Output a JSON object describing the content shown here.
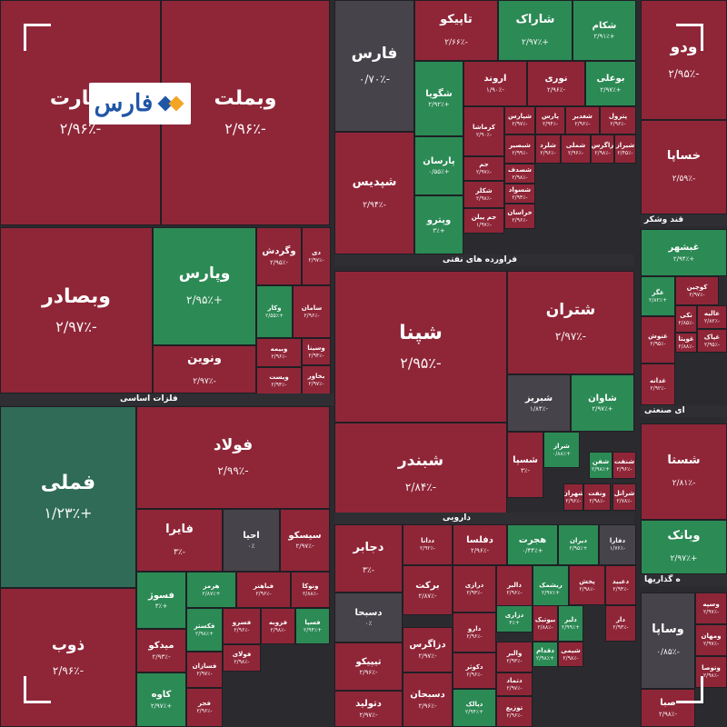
{
  "colors": {
    "loss": "#8f2638",
    "gain": "#2c8a55",
    "gain_dark": "#2f6b57",
    "neutral": "#47434a",
    "logo_blue": "#1f56a6",
    "logo_orange": "#f2a425"
  },
  "logo": {
    "text": "فارس"
  },
  "chart_data": {
    "type": "treemap",
    "sectors": [
      "فلزات اساسی",
      "فراورده های نفتی",
      "دارویی",
      "قند وشکر",
      "ای صنعتی",
      "ه گذاریها"
    ],
    "tiles": [
      {
        "symbol": "تجارت",
        "change": "-۲/۹۶٪"
      },
      {
        "symbol": "وبملت",
        "change": "-۲/۹۶٪"
      },
      {
        "symbol": "وبصادر",
        "change": "-۲/۹۷٪"
      },
      {
        "symbol": "وپارس",
        "change": "+۲/۹۵٪"
      },
      {
        "symbol": "وگردش",
        "change": "-۲/۹۵٪"
      },
      {
        "symbol": "دی",
        "change": "-۲/۹۷٪"
      },
      {
        "symbol": "وکار",
        "change": "+۲/۵۵٪"
      },
      {
        "symbol": "سامان",
        "change": "-۲/۹۶٪"
      },
      {
        "symbol": "وبیمه",
        "change": "-۲/۹۶٪"
      },
      {
        "symbol": "ونوین",
        "change": "-۲/۹۷٪"
      },
      {
        "symbol": "وسینا",
        "change": "-۲/۹۴٪"
      },
      {
        "symbol": "ویست",
        "change": "-۲/۹۴٪"
      },
      {
        "symbol": "بخاور",
        "change": "-۲/۹۷٪"
      },
      {
        "symbol": "فملی",
        "change": "+۱/۲۳٪"
      },
      {
        "symbol": "فولاد",
        "change": "-۲/۹۹٪"
      },
      {
        "symbol": "ذوب",
        "change": "-۲/۹۶٪"
      },
      {
        "symbol": "فایرا",
        "change": "-۳٪"
      },
      {
        "symbol": "احیا",
        "change": "۰٪"
      },
      {
        "symbol": "سیسکو",
        "change": "-۲/۹۷٪"
      },
      {
        "symbol": "فسوژ",
        "change": "+۳٪"
      },
      {
        "symbol": "هرمز",
        "change": "+۲/۸۷٪"
      },
      {
        "symbol": "فباهنر",
        "change": "-۲/۹۶٪"
      },
      {
        "symbol": "ونوکا",
        "change": "-۲/۸۸٪"
      },
      {
        "symbol": "میدکو",
        "change": "-۲/۹۳٪"
      },
      {
        "symbol": "فکستر",
        "change": "+۲/۹۸٪"
      },
      {
        "symbol": "فسرو",
        "change": "-۲/۹۶٪"
      },
      {
        "symbol": "فزوبه",
        "change": "-۲/۹۸٪"
      },
      {
        "symbol": "فسپا",
        "change": "+۲/۹۴٪"
      },
      {
        "symbol": "فولای",
        "change": "-۲/۹۸٪"
      },
      {
        "symbol": "فسازان",
        "change": "-۲/۹۷٪"
      },
      {
        "symbol": "کاوه",
        "change": "+۲/۹۷٪"
      },
      {
        "symbol": "فجر",
        "change": "-۲/۹۶٪"
      },
      {
        "symbol": "فارس",
        "change": "-۰/۷۰٪"
      },
      {
        "symbol": "شپدیس",
        "change": "-۲/۹۴٪"
      },
      {
        "symbol": "تاپیکو",
        "change": "-۲/۶۶٪"
      },
      {
        "symbol": "شاراک",
        "change": "+۲/۹۷٪"
      },
      {
        "symbol": "شکام",
        "change": "+۲/۹۱٪"
      },
      {
        "symbol": "شگویا",
        "change": "+۲/۹۲٪"
      },
      {
        "symbol": "اروند",
        "change": "-۱/۹۰٪"
      },
      {
        "symbol": "نوری",
        "change": "-۲/۹۶٪"
      },
      {
        "symbol": "بوعلی",
        "change": "+۲/۹۷٪"
      },
      {
        "symbol": "کرماشا",
        "change": "-۲/۹۰٪"
      },
      {
        "symbol": "شپارس",
        "change": "-۲/۹۷٪"
      },
      {
        "symbol": "پارس",
        "change": "-۲/۹۴٪"
      },
      {
        "symbol": "شغدیر",
        "change": "-۲/۹۶٪"
      },
      {
        "symbol": "پترول",
        "change": "-۲/۹۶٪"
      },
      {
        "symbol": "پارسان",
        "change": "+۰/۵۵٪"
      },
      {
        "symbol": "شبصیر",
        "change": "-۲/۹۹٪"
      },
      {
        "symbol": "شلرد",
        "change": "-۲/۹۶٪"
      },
      {
        "symbol": "شملی",
        "change": "-۲/۹۶٪"
      },
      {
        "symbol": "زاگرس",
        "change": "-۲/۹۸٪"
      },
      {
        "symbol": "شیراز",
        "change": "-۲/۴۵٪"
      },
      {
        "symbol": "جم",
        "change": "-۲/۹۷٪"
      },
      {
        "symbol": "شصدف",
        "change": "-۲/۹۸٪"
      },
      {
        "symbol": "شسواد",
        "change": "-۲/۹۴٪"
      },
      {
        "symbol": "وپترو",
        "change": "+۳٪"
      },
      {
        "symbol": "شکلر",
        "change": "-۲/۹۸٪"
      },
      {
        "symbol": "جم پیلن",
        "change": "-۱/۹۷٪"
      },
      {
        "symbol": "خراسان",
        "change": "-۲/۹۶٪"
      },
      {
        "symbol": "شپنا",
        "change": "-۲/۹۵٪"
      },
      {
        "symbol": "شتران",
        "change": "-۲/۹۷٪"
      },
      {
        "symbol": "شبریز",
        "change": "-۱/۸۴٪"
      },
      {
        "symbol": "شاوان",
        "change": "+۲/۹۷٪"
      },
      {
        "symbol": "شبندر",
        "change": "-۲/۸۴٪"
      },
      {
        "symbol": "شسپا",
        "change": "-۳٪"
      },
      {
        "symbol": "شراز",
        "change": "+۰/۸۸٪"
      },
      {
        "symbol": "شفن",
        "change": "+۲/۹۸٪"
      },
      {
        "symbol": "شهران",
        "change": "-۲/۹۶٪"
      },
      {
        "symbol": "ونفت",
        "change": "-۲/۹۸٪"
      },
      {
        "symbol": "شنفت",
        "change": "-۲/۹۶٪"
      },
      {
        "symbol": "شرانل",
        "change": "-۲/۷۸٪"
      },
      {
        "symbol": "ودو",
        "change": "-۲/۹۵٪"
      },
      {
        "symbol": "خساپا",
        "change": "-۲/۵۹٪"
      },
      {
        "symbol": "غبشهر",
        "change": "+۲/۹۴٪"
      },
      {
        "symbol": "غگز",
        "change": "+۲/۸۲٪"
      },
      {
        "symbol": "کوچین",
        "change": "-۲/۹۷٪"
      },
      {
        "symbol": "نکی",
        "change": "-۲/۸۵٪"
      },
      {
        "symbol": "عالیه",
        "change": "-۲/۸۲٪"
      },
      {
        "symbol": "غنوش",
        "change": "-۲/۹۵٪"
      },
      {
        "symbol": "غویتا",
        "change": "-۲/۸۸٪"
      },
      {
        "symbol": "غپاک",
        "change": "-۲/۹۵٪"
      },
      {
        "symbol": "غدانه",
        "change": "-۲/۹۲٪"
      },
      {
        "symbol": "شستا",
        "change": "-۲/۸۱٪"
      },
      {
        "symbol": "وبانک",
        "change": "+۲/۹۷٪"
      },
      {
        "symbol": "وسپه",
        "change": "-۲/۹۷٪"
      },
      {
        "symbol": "ومهان",
        "change": "-۲/۹۷٪"
      },
      {
        "symbol": "وتوصا",
        "change": "-۲/۹۸٪"
      },
      {
        "symbol": "وساپا",
        "change": "-۰/۸۵٪"
      },
      {
        "symbol": "صبا",
        "change": "-۲/۹۸٪"
      },
      {
        "symbol": "دجابر",
        "change": "-۳٪"
      },
      {
        "symbol": "ددانا",
        "change": "-۲/۹۲٪"
      },
      {
        "symbol": "دفلسا",
        "change": "-۲/۹۶٪"
      },
      {
        "symbol": "هجرت",
        "change": "+۰/۴۴٪"
      },
      {
        "symbol": "دیران",
        "change": "+۲/۹۵٪"
      },
      {
        "symbol": "دفارا",
        "change": "-۱/۷۶٪"
      },
      {
        "symbol": "دسبحا",
        "change": "۰٪"
      },
      {
        "symbol": "برکت",
        "change": "-۲/۸۷٪"
      },
      {
        "symbol": "درازی",
        "change": "-۲/۹۳٪"
      },
      {
        "symbol": "دالبر",
        "change": "-۲/۹۶٪"
      },
      {
        "symbol": "ریشمک",
        "change": "+۲/۹۷٪"
      },
      {
        "symbol": "پخش",
        "change": "-۲/۹۸٪"
      },
      {
        "symbol": "دعبید",
        "change": "-۲/۹۴٪"
      },
      {
        "symbol": "دارو",
        "change": "-۲/۹۶٪"
      },
      {
        "symbol": "دزاری",
        "change": "+۳٪"
      },
      {
        "symbol": "بیوتیک",
        "change": "-۲/۸۸٪"
      },
      {
        "symbol": "دلبر",
        "change": "+۲/۹۹٪"
      },
      {
        "symbol": "دار",
        "change": "-۲/۹۳٪"
      },
      {
        "symbol": "دزاگرس",
        "change": "-۲/۹۷٪"
      },
      {
        "symbol": "تیپیکو",
        "change": "-۲/۹۶٪"
      },
      {
        "symbol": "والبر",
        "change": "-۲/۹۳٪"
      },
      {
        "symbol": "دقدام",
        "change": "+۲/۹۸٪"
      },
      {
        "symbol": "شیمی",
        "change": "-۲/۹۸٪"
      },
      {
        "symbol": "دکوثر",
        "change": "-۲/۹۶٪"
      },
      {
        "symbol": "دتماد",
        "change": "-۲/۹۷٪"
      },
      {
        "symbol": "دتولید",
        "change": "-۲/۹۷٪"
      },
      {
        "symbol": "دسبحان",
        "change": "-۲/۹۶٪"
      },
      {
        "symbol": "دپالک",
        "change": "+۲/۹۴٪"
      },
      {
        "symbol": "توزیع",
        "change": "-۲/۹۶٪"
      }
    ]
  }
}
